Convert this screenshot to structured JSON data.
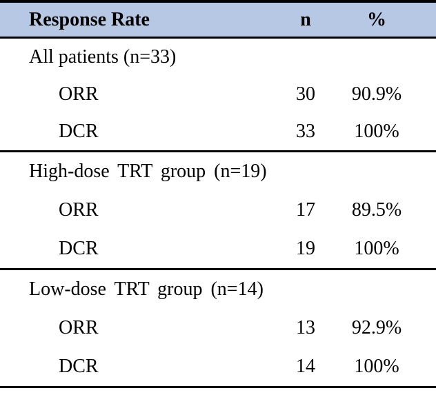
{
  "colors": {
    "header_bg": "#b6c8e4",
    "border_color": "#000000",
    "text_color": "#000000"
  },
  "table": {
    "header": {
      "col1": "Response Rate",
      "col2": "n",
      "col3": "%"
    },
    "sections": [
      {
        "label": "All patients (n=33)",
        "rows": [
          {
            "label": "ORR",
            "n": "30",
            "pct": "90.9%"
          },
          {
            "label": "DCR",
            "n": "33",
            "pct": "100%"
          }
        ]
      },
      {
        "label": "High-dose TRT group (n=19)",
        "rows": [
          {
            "label": "ORR",
            "n": "17",
            "pct": "89.5%"
          },
          {
            "label": "DCR",
            "n": "19",
            "pct": "100%"
          }
        ]
      },
      {
        "label": "Low-dose TRT group (n=14)",
        "rows": [
          {
            "label": "ORR",
            "n": "13",
            "pct": "92.9%"
          },
          {
            "label": "DCR",
            "n": "14",
            "pct": "100%"
          }
        ]
      }
    ]
  }
}
